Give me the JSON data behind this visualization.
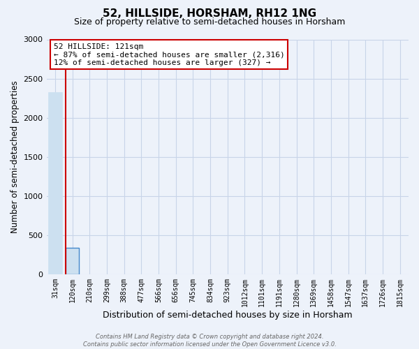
{
  "title": "52, HILLSIDE, HORSHAM, RH12 1NG",
  "subtitle": "Size of property relative to semi-detached houses in Horsham",
  "xlabel": "Distribution of semi-detached houses by size in Horsham",
  "ylabel": "Number of semi-detached properties",
  "bar_color": "#cce0f0",
  "grid_color": "#c8d4e8",
  "background_color": "#edf2fa",
  "red_color": "#cc0000",
  "annotation_line1": "52 HILLSIDE: 121sqm",
  "annotation_line2": "← 87% of semi-detached houses are smaller (2,316)",
  "annotation_line3": "12% of semi-detached houses are larger (327) →",
  "footer_line1": "Contains HM Land Registry data © Crown copyright and database right 2024.",
  "footer_line2": "Contains public sector information licensed under the Open Government Licence v3.0.",
  "categories": [
    "31sqm",
    "120sqm",
    "210sqm",
    "299sqm",
    "388sqm",
    "477sqm",
    "566sqm",
    "656sqm",
    "745sqm",
    "834sqm",
    "923sqm",
    "1012sqm",
    "1101sqm",
    "1191sqm",
    "1280sqm",
    "1369sqm",
    "1458sqm",
    "1547sqm",
    "1637sqm",
    "1726sqm",
    "1815sqm"
  ],
  "values": [
    2330,
    335,
    0,
    0,
    0,
    0,
    0,
    0,
    0,
    0,
    0,
    0,
    0,
    0,
    0,
    0,
    0,
    0,
    0,
    0,
    0
  ],
  "highlight_index": 1,
  "ylim": [
    0,
    3000
  ],
  "yticks": [
    0,
    500,
    1000,
    1500,
    2000,
    2500,
    3000
  ],
  "title_fontsize": 11,
  "subtitle_fontsize": 9,
  "tick_fontsize": 7,
  "ylabel_fontsize": 8.5,
  "xlabel_fontsize": 9,
  "annotation_fontsize": 8,
  "footer_fontsize": 6
}
